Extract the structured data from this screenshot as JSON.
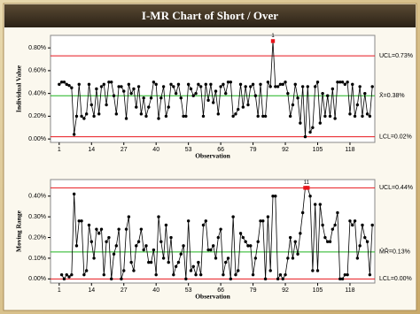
{
  "title": "I-MR Chart of Short / Over",
  "chart_data": [
    {
      "type": "line",
      "ylabel": "Individual Value",
      "xlabel": "Observation",
      "x": [
        1,
        2,
        3,
        4,
        5,
        6,
        7,
        8,
        9,
        10,
        11,
        12,
        13,
        14,
        15,
        16,
        17,
        18,
        19,
        20,
        21,
        22,
        23,
        24,
        25,
        26,
        27,
        28,
        29,
        30,
        31,
        32,
        33,
        34,
        35,
        36,
        37,
        38,
        39,
        40,
        41,
        42,
        43,
        44,
        45,
        46,
        47,
        48,
        49,
        50,
        51,
        52,
        53,
        54,
        55,
        56,
        57,
        58,
        59,
        60,
        61,
        62,
        63,
        64,
        65,
        66,
        67,
        68,
        69,
        70,
        71,
        72,
        73,
        74,
        75,
        76,
        77,
        78,
        79,
        80,
        81,
        82,
        83,
        84,
        85,
        86,
        87,
        88,
        89,
        90,
        91,
        92,
        93,
        94,
        95,
        96,
        97,
        98,
        99,
        100,
        101,
        102,
        103,
        104,
        105,
        106,
        107,
        108,
        109,
        110,
        111,
        112,
        113,
        114,
        115,
        116,
        117,
        118,
        119,
        120,
        121,
        122,
        123,
        124,
        125,
        126,
        127
      ],
      "series": [
        {
          "color": "#000000",
          "flag_label": "1",
          "values": [
            0.48,
            0.5,
            0.5,
            0.48,
            0.47,
            0.45,
            0.04,
            0.2,
            0.48,
            0.2,
            0.18,
            0.22,
            0.48,
            0.3,
            0.2,
            0.44,
            0.22,
            0.46,
            0.48,
            0.3,
            0.5,
            0.5,
            0.38,
            0.22,
            0.46,
            0.46,
            0.42,
            0.18,
            0.48,
            0.4,
            0.44,
            0.28,
            0.46,
            0.22,
            0.36,
            0.2,
            0.28,
            0.36,
            0.5,
            0.48,
            0.18,
            0.36,
            0.46,
            0.2,
            0.28,
            0.48,
            0.46,
            0.4,
            0.48,
            0.36,
            0.2,
            0.2,
            0.48,
            0.44,
            0.38,
            0.4,
            0.48,
            0.46,
            0.2,
            0.48,
            0.34,
            0.48,
            0.32,
            0.42,
            0.22,
            0.46,
            0.48,
            0.4,
            0.5,
            0.5,
            0.2,
            0.22,
            0.26,
            0.48,
            0.28,
            0.46,
            0.3,
            0.46,
            0.48,
            0.38,
            0.2,
            0.48,
            0.2,
            0.2,
            0.5,
            0.46,
            0.86,
            0.46,
            0.46,
            0.48,
            0.48,
            0.5,
            0.4,
            0.2,
            0.3,
            0.48,
            0.36,
            0.14,
            0.46,
            0.02,
            0.46,
            0.06,
            0.1,
            0.46,
            0.5,
            0.14,
            0.4,
            0.2,
            0.38,
            0.2,
            0.44,
            0.18,
            0.5,
            0.5,
            0.5,
            0.48,
            0.5,
            0.22,
            0.48,
            0.2,
            0.3,
            0.46,
            0.2,
            0.4,
            0.22,
            0.2,
            0.46
          ]
        }
      ],
      "out_of_control_color": "#e8141b",
      "limits": {
        "ucl": 0.73,
        "ucl_label": "UCL=0.73%",
        "center": 0.38,
        "center_label": "X̄=0.38%",
        "lcl": 0.02,
        "lcl_label": "LCL=0.02%",
        "limit_color": "#e8141b",
        "center_color": "#1fb31f"
      },
      "xlim": [
        -2.5,
        128
      ],
      "xticks": [
        1,
        14,
        27,
        40,
        53,
        66,
        79,
        92,
        105,
        118
      ],
      "ylim": [
        -0.03,
        0.91
      ],
      "yticks": [
        {
          "value": 0,
          "label": "0.00%"
        },
        {
          "value": 0.2,
          "label": "0.20%"
        },
        {
          "value": 0.4,
          "label": "0.40%"
        },
        {
          "value": 0.6,
          "label": "0.60%"
        },
        {
          "value": 0.8,
          "label": "0.80%"
        }
      ]
    },
    {
      "type": "line",
      "ylabel": "Moving Range",
      "xlabel": "Observation",
      "x": [
        2,
        3,
        4,
        5,
        6,
        7,
        8,
        9,
        10,
        11,
        12,
        13,
        14,
        15,
        16,
        17,
        18,
        19,
        20,
        21,
        22,
        23,
        24,
        25,
        26,
        27,
        28,
        29,
        30,
        31,
        32,
        33,
        34,
        35,
        36,
        37,
        38,
        39,
        40,
        41,
        42,
        43,
        44,
        45,
        46,
        47,
        48,
        49,
        50,
        51,
        52,
        53,
        54,
        55,
        56,
        57,
        58,
        59,
        60,
        61,
        62,
        63,
        64,
        65,
        66,
        67,
        68,
        69,
        70,
        71,
        72,
        73,
        74,
        75,
        76,
        77,
        78,
        79,
        80,
        81,
        82,
        83,
        84,
        85,
        86,
        87,
        88,
        89,
        90,
        91,
        92,
        93,
        94,
        95,
        96,
        97,
        98,
        99,
        100,
        101,
        102,
        103,
        104,
        105,
        106,
        107,
        108,
        109,
        110,
        111,
        112,
        113,
        114,
        115,
        116,
        117,
        118,
        119,
        120,
        121,
        122,
        123,
        124,
        125,
        126,
        127
      ],
      "series": [
        {
          "color": "#000000",
          "flag_label": "1",
          "values": [
            0.02,
            0,
            0.02,
            0.01,
            0.02,
            0.41,
            0.16,
            0.28,
            0.28,
            0.02,
            0.04,
            0.26,
            0.18,
            0.1,
            0.24,
            0.22,
            0.24,
            0.02,
            0.18,
            0.2,
            0,
            0.12,
            0.16,
            0.24,
            0,
            0.04,
            0.24,
            0.3,
            0.08,
            0.04,
            0.16,
            0.18,
            0.24,
            0.14,
            0.16,
            0.08,
            0.08,
            0.14,
            0.02,
            0.3,
            0.18,
            0.1,
            0.26,
            0.08,
            0.2,
            0.02,
            0.06,
            0.08,
            0.12,
            0.16,
            0,
            0.28,
            0.04,
            0.06,
            0.02,
            0.08,
            0.02,
            0.26,
            0.28,
            0.14,
            0.14,
            0.16,
            0.1,
            0.2,
            0.24,
            0.02,
            0.08,
            0.1,
            0,
            0.3,
            0.02,
            0.04,
            0.22,
            0.2,
            0.18,
            0.16,
            0.16,
            0.02,
            0.1,
            0.18,
            0.28,
            0.28,
            0,
            0.3,
            0.04,
            0.4,
            0.4,
            0,
            0.02,
            0,
            0.02,
            0.1,
            0.2,
            0.1,
            0.18,
            0.12,
            0.22,
            0.32,
            0.44,
            0.44,
            0.4,
            0.04,
            0.36,
            0.04,
            0.36,
            0.26,
            0.2,
            0.18,
            0.18,
            0.24,
            0.26,
            0.32,
            0,
            0,
            0.02,
            0.02,
            0.28,
            0.26,
            0.28,
            0.1,
            0.16,
            0.26,
            0.2,
            0.18,
            0.02,
            0.26
          ]
        }
      ],
      "out_of_control_color": "#e8141b",
      "limits": {
        "ucl": 0.44,
        "ucl_label": "UCL=0.44%",
        "center": 0.13,
        "center_label": "M̄R̄=0.13%",
        "lcl": 0,
        "lcl_label": "LCL=0.00%",
        "limit_color": "#e8141b",
        "center_color": "#1fb31f"
      },
      "xlim": [
        -2.5,
        128
      ],
      "xticks": [
        1,
        14,
        27,
        40,
        53,
        66,
        79,
        92,
        105,
        118
      ],
      "ylim": [
        -0.02,
        0.48
      ],
      "yticks": [
        {
          "value": 0,
          "label": "0.00%"
        },
        {
          "value": 0.1,
          "label": "0.10%"
        },
        {
          "value": 0.2,
          "label": "0.20%"
        },
        {
          "value": 0.3,
          "label": "0.30%"
        },
        {
          "value": 0.4,
          "label": "0.40%"
        }
      ]
    }
  ]
}
